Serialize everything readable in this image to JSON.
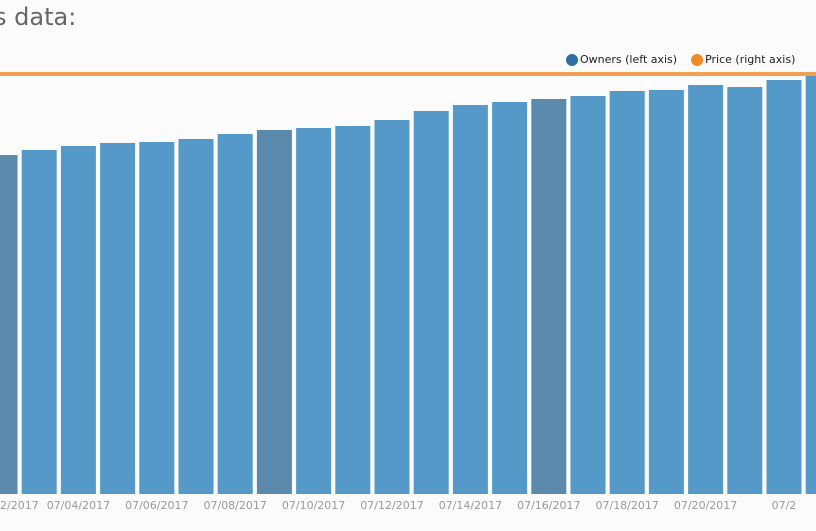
{
  "chart_data": {
    "type": "bar",
    "title": "s data:",
    "categories": [
      "2/2017",
      null,
      "07/04/2017",
      null,
      "07/06/2017",
      null,
      "07/08/2017",
      null,
      "07/10/2017",
      null,
      "07/12/2017",
      null,
      "07/14/2017",
      null,
      "07/16/2017",
      null,
      "07/18/2017",
      null,
      "07/20/2017",
      null,
      "07/2",
      null
    ],
    "series": [
      {
        "name": "Owners (left axis)",
        "color": "#5499c7",
        "colors": [
          "#5b8aac",
          "#5499c7",
          "#5499c7",
          "#5499c7",
          "#5499c7",
          "#5499c7",
          "#5499c7",
          "#5b8aac",
          "#5499c7",
          "#5499c7",
          "#5499c7",
          "#5499c7",
          "#5499c7",
          "#5499c7",
          "#5b8aac",
          "#5499c7",
          "#5499c7",
          "#5499c7",
          "#5499c7",
          "#5499c7",
          "#5499c7",
          "#5499c7"
        ],
        "values": [
          339,
          344,
          348,
          351,
          352,
          355,
          360,
          364,
          366,
          368,
          374,
          383,
          389,
          392,
          395,
          398,
          403,
          404,
          409,
          407,
          414,
          419
        ]
      },
      {
        "name": "Price (right axis)",
        "color": "#f0a050",
        "axis": "y2",
        "values": [
          420,
          420,
          420,
          420,
          420,
          420,
          420,
          420,
          420,
          420,
          420,
          420,
          420,
          420,
          420,
          420,
          420,
          420,
          420,
          420,
          420,
          420
        ]
      }
    ],
    "ylim": [
      0,
      460
    ],
    "y2lim": [
      0,
      460
    ]
  }
}
